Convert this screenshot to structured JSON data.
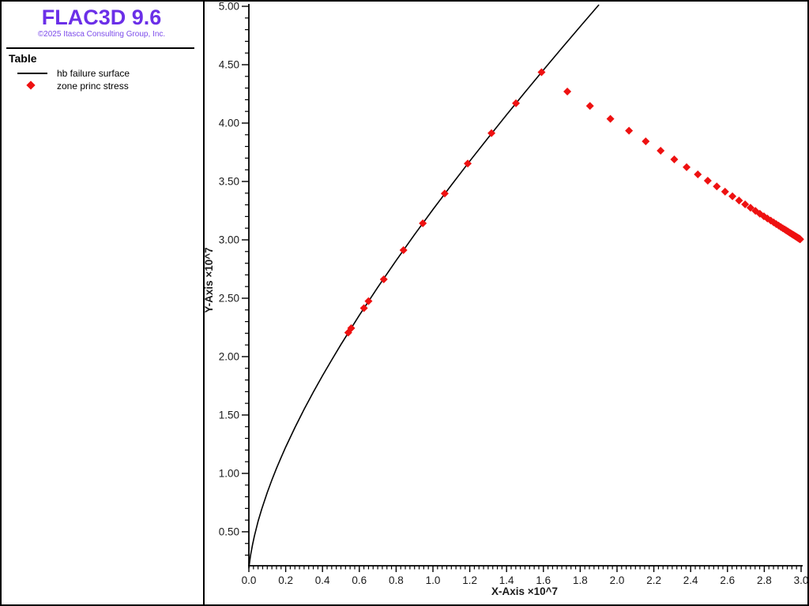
{
  "branding": {
    "title": "FLAC3D 9.6",
    "copyright": "©2025 Itasca Consulting Group, Inc.",
    "title_color": "#6B2FE8",
    "copyright_color": "#7C4BEA"
  },
  "legend": {
    "heading": "Table",
    "items": [
      {
        "swatch": "line",
        "label": "hb failure surface",
        "color": "#000000"
      },
      {
        "swatch": "diamond",
        "label": "zone princ stress",
        "color": "#EE1111"
      }
    ]
  },
  "chart_data": {
    "type": "line",
    "title": "",
    "xlabel": "X-Axis ×10^7",
    "ylabel": "Y-Axis ×10^7",
    "xlim": [
      0.0,
      3.0
    ],
    "ylim": [
      0.209,
      5.0
    ],
    "grid": false,
    "legend_position": "left-panel",
    "x_tick_labels": [
      "0.0",
      "0.2",
      "0.4",
      "0.6",
      "0.8",
      "1.0",
      "1.2",
      "1.4",
      "1.6",
      "1.8",
      "2.0",
      "2.2",
      "2.4",
      "2.6",
      "2.8",
      "3.0"
    ],
    "x_major_step": 0.2,
    "x_minor_step": 0.025,
    "y_tick_labels": [
      "0.50",
      "1.00",
      "1.50",
      "2.00",
      "2.50",
      "3.00",
      "3.50",
      "4.00",
      "4.50",
      "5.00"
    ],
    "y_major_step": 0.5,
    "y_minor_step": 0.1,
    "axis_color": "#000000",
    "tick_label_color": "#1a1a1a",
    "series": [
      {
        "name": "hb failure surface",
        "type": "line",
        "color": "#000000",
        "points": [
          [
            0.0,
            0.19
          ],
          [
            0.005,
            0.253
          ],
          [
            0.01,
            0.304
          ],
          [
            0.02,
            0.391
          ],
          [
            0.03,
            0.464
          ],
          [
            0.05,
            0.588
          ],
          [
            0.07,
            0.695
          ],
          [
            0.1,
            0.837
          ],
          [
            0.125,
            0.943
          ],
          [
            0.15,
            1.042
          ],
          [
            0.175,
            1.136
          ],
          [
            0.2,
            1.225
          ],
          [
            0.25,
            1.392
          ],
          [
            0.3,
            1.548
          ],
          [
            0.35,
            1.696
          ],
          [
            0.4,
            1.837
          ],
          [
            0.45,
            1.972
          ],
          [
            0.5,
            2.103
          ],
          [
            0.6,
            2.354
          ],
          [
            0.7,
            2.593
          ],
          [
            0.8,
            2.823
          ],
          [
            0.9,
            3.045
          ],
          [
            1.0,
            3.26
          ],
          [
            1.1,
            3.469
          ],
          [
            1.2,
            3.674
          ],
          [
            1.3,
            3.874
          ],
          [
            1.4,
            4.071
          ],
          [
            1.5,
            4.264
          ],
          [
            1.6,
            4.455
          ],
          [
            1.7,
            4.642
          ],
          [
            1.8,
            4.827
          ],
          [
            1.9,
            5.01
          ]
        ]
      },
      {
        "name": "zone princ stress",
        "type": "scatter",
        "marker": "diamond",
        "marker_size": 10,
        "color": "#EE1111",
        "points": [
          [
            0.54,
            2.206
          ],
          [
            0.556,
            2.244
          ],
          [
            0.625,
            2.415
          ],
          [
            0.65,
            2.475
          ],
          [
            0.733,
            2.662
          ],
          [
            0.84,
            2.912
          ],
          [
            0.945,
            3.142
          ],
          [
            1.064,
            3.397
          ],
          [
            1.189,
            3.654
          ],
          [
            1.318,
            3.914
          ],
          [
            1.451,
            4.17
          ],
          [
            1.59,
            4.436
          ],
          [
            1.73,
            4.27
          ],
          [
            1.853,
            4.147
          ],
          [
            1.964,
            4.036
          ],
          [
            2.065,
            3.935
          ],
          [
            2.156,
            3.844
          ],
          [
            2.237,
            3.763
          ],
          [
            2.311,
            3.689
          ],
          [
            2.378,
            3.622
          ],
          [
            2.439,
            3.561
          ],
          [
            2.493,
            3.507
          ],
          [
            2.542,
            3.458
          ],
          [
            2.587,
            3.413
          ],
          [
            2.627,
            3.373
          ],
          [
            2.663,
            3.337
          ],
          [
            2.696,
            3.304
          ],
          [
            2.725,
            3.275
          ],
          [
            2.752,
            3.248
          ],
          [
            2.776,
            3.224
          ],
          [
            2.798,
            3.202
          ],
          [
            2.817,
            3.183
          ],
          [
            2.835,
            3.165
          ],
          [
            2.851,
            3.149
          ],
          [
            2.865,
            3.135
          ],
          [
            2.878,
            3.122
          ],
          [
            2.89,
            3.11
          ],
          [
            2.901,
            3.099
          ],
          [
            2.911,
            3.089
          ],
          [
            2.919,
            3.081
          ],
          [
            2.927,
            3.073
          ],
          [
            2.934,
            3.066
          ],
          [
            2.94,
            3.06
          ],
          [
            2.946,
            3.054
          ],
          [
            2.951,
            3.049
          ],
          [
            2.956,
            3.044
          ],
          [
            2.96,
            3.04
          ],
          [
            2.964,
            3.036
          ],
          [
            2.968,
            3.032
          ],
          [
            2.971,
            3.029
          ],
          [
            2.974,
            3.026
          ],
          [
            2.976,
            3.024
          ],
          [
            2.979,
            3.021
          ],
          [
            2.981,
            3.019
          ],
          [
            2.983,
            3.017
          ],
          [
            2.985,
            3.015
          ],
          [
            2.986,
            3.014
          ],
          [
            2.988,
            3.012
          ],
          [
            2.989,
            3.011
          ],
          [
            2.99,
            3.01
          ],
          [
            2.991,
            3.009
          ],
          [
            2.992,
            3.008
          ],
          [
            2.993,
            3.007
          ],
          [
            2.994,
            3.006
          ],
          [
            2.995,
            3.005
          ]
        ]
      }
    ]
  }
}
